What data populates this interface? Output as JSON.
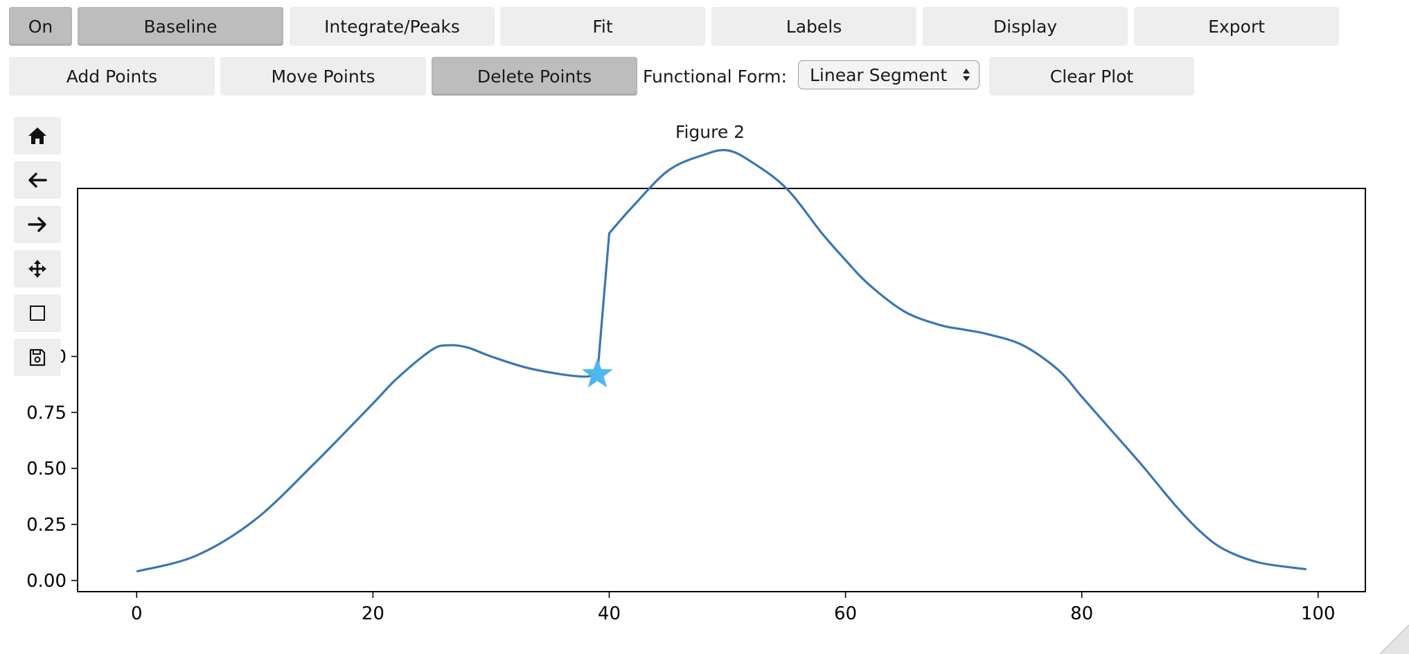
{
  "toolbar_row1": [
    {
      "label": "On",
      "active": true
    },
    {
      "label": "Baseline",
      "active": true
    },
    {
      "label": "Integrate/Peaks",
      "active": false
    },
    {
      "label": "Fit",
      "active": false
    },
    {
      "label": "Labels",
      "active": false
    },
    {
      "label": "Display",
      "active": false
    },
    {
      "label": "Export",
      "active": false
    }
  ],
  "toolbar_row2": {
    "add_points": "Add Points",
    "move_points": "Move Points",
    "delete_points": "Delete Points",
    "functional_form_label": "Functional Form:",
    "functional_form_value": "Linear Segment",
    "clear_plot": "Clear Plot"
  },
  "nav_tools": [
    "home-icon",
    "back-arrow-icon",
    "forward-arrow-icon",
    "pan-icon",
    "zoom-rect-icon",
    "save-icon"
  ],
  "figure": {
    "title": "Figure 2"
  },
  "chart_data": {
    "type": "line",
    "title": "",
    "xlabel": "",
    "ylabel": "",
    "xlim": [
      -5,
      104
    ],
    "ylim": [
      -0.05,
      1.75
    ],
    "xticks": [
      0,
      20,
      40,
      60,
      80,
      100
    ],
    "xtick_labels": [
      "0",
      "20",
      "40",
      "60",
      "80",
      "100"
    ],
    "yticks": [
      0.0,
      0.25,
      0.5,
      0.75,
      1.0
    ],
    "ytick_labels": [
      "0.00",
      "0.25",
      "0.50",
      "0.75",
      "1.00"
    ],
    "line_color": "#3a76b2",
    "series": [
      {
        "x": [
          0,
          5,
          10,
          15,
          20,
          22,
          25,
          26.5,
          28,
          30,
          33,
          36,
          38,
          39,
          40,
          42,
          45,
          48,
          50,
          52,
          55,
          58,
          60,
          62,
          65,
          68,
          70,
          72,
          75,
          78,
          80,
          82,
          85,
          88,
          90,
          92,
          95,
          99
        ],
        "y": [
          0.04,
          0.11,
          0.27,
          0.52,
          0.79,
          0.9,
          1.03,
          1.05,
          1.04,
          1.0,
          0.95,
          0.92,
          0.91,
          0.92,
          1.55,
          1.67,
          1.83,
          1.9,
          1.92,
          1.87,
          1.75,
          1.55,
          1.43,
          1.32,
          1.2,
          1.14,
          1.12,
          1.1,
          1.05,
          0.94,
          0.82,
          0.7,
          0.52,
          0.33,
          0.22,
          0.14,
          0.08,
          0.05
        ]
      }
    ],
    "markers": [
      {
        "x": 39,
        "y": 0.92,
        "shape": "star",
        "color": "#4db8f0"
      }
    ]
  }
}
